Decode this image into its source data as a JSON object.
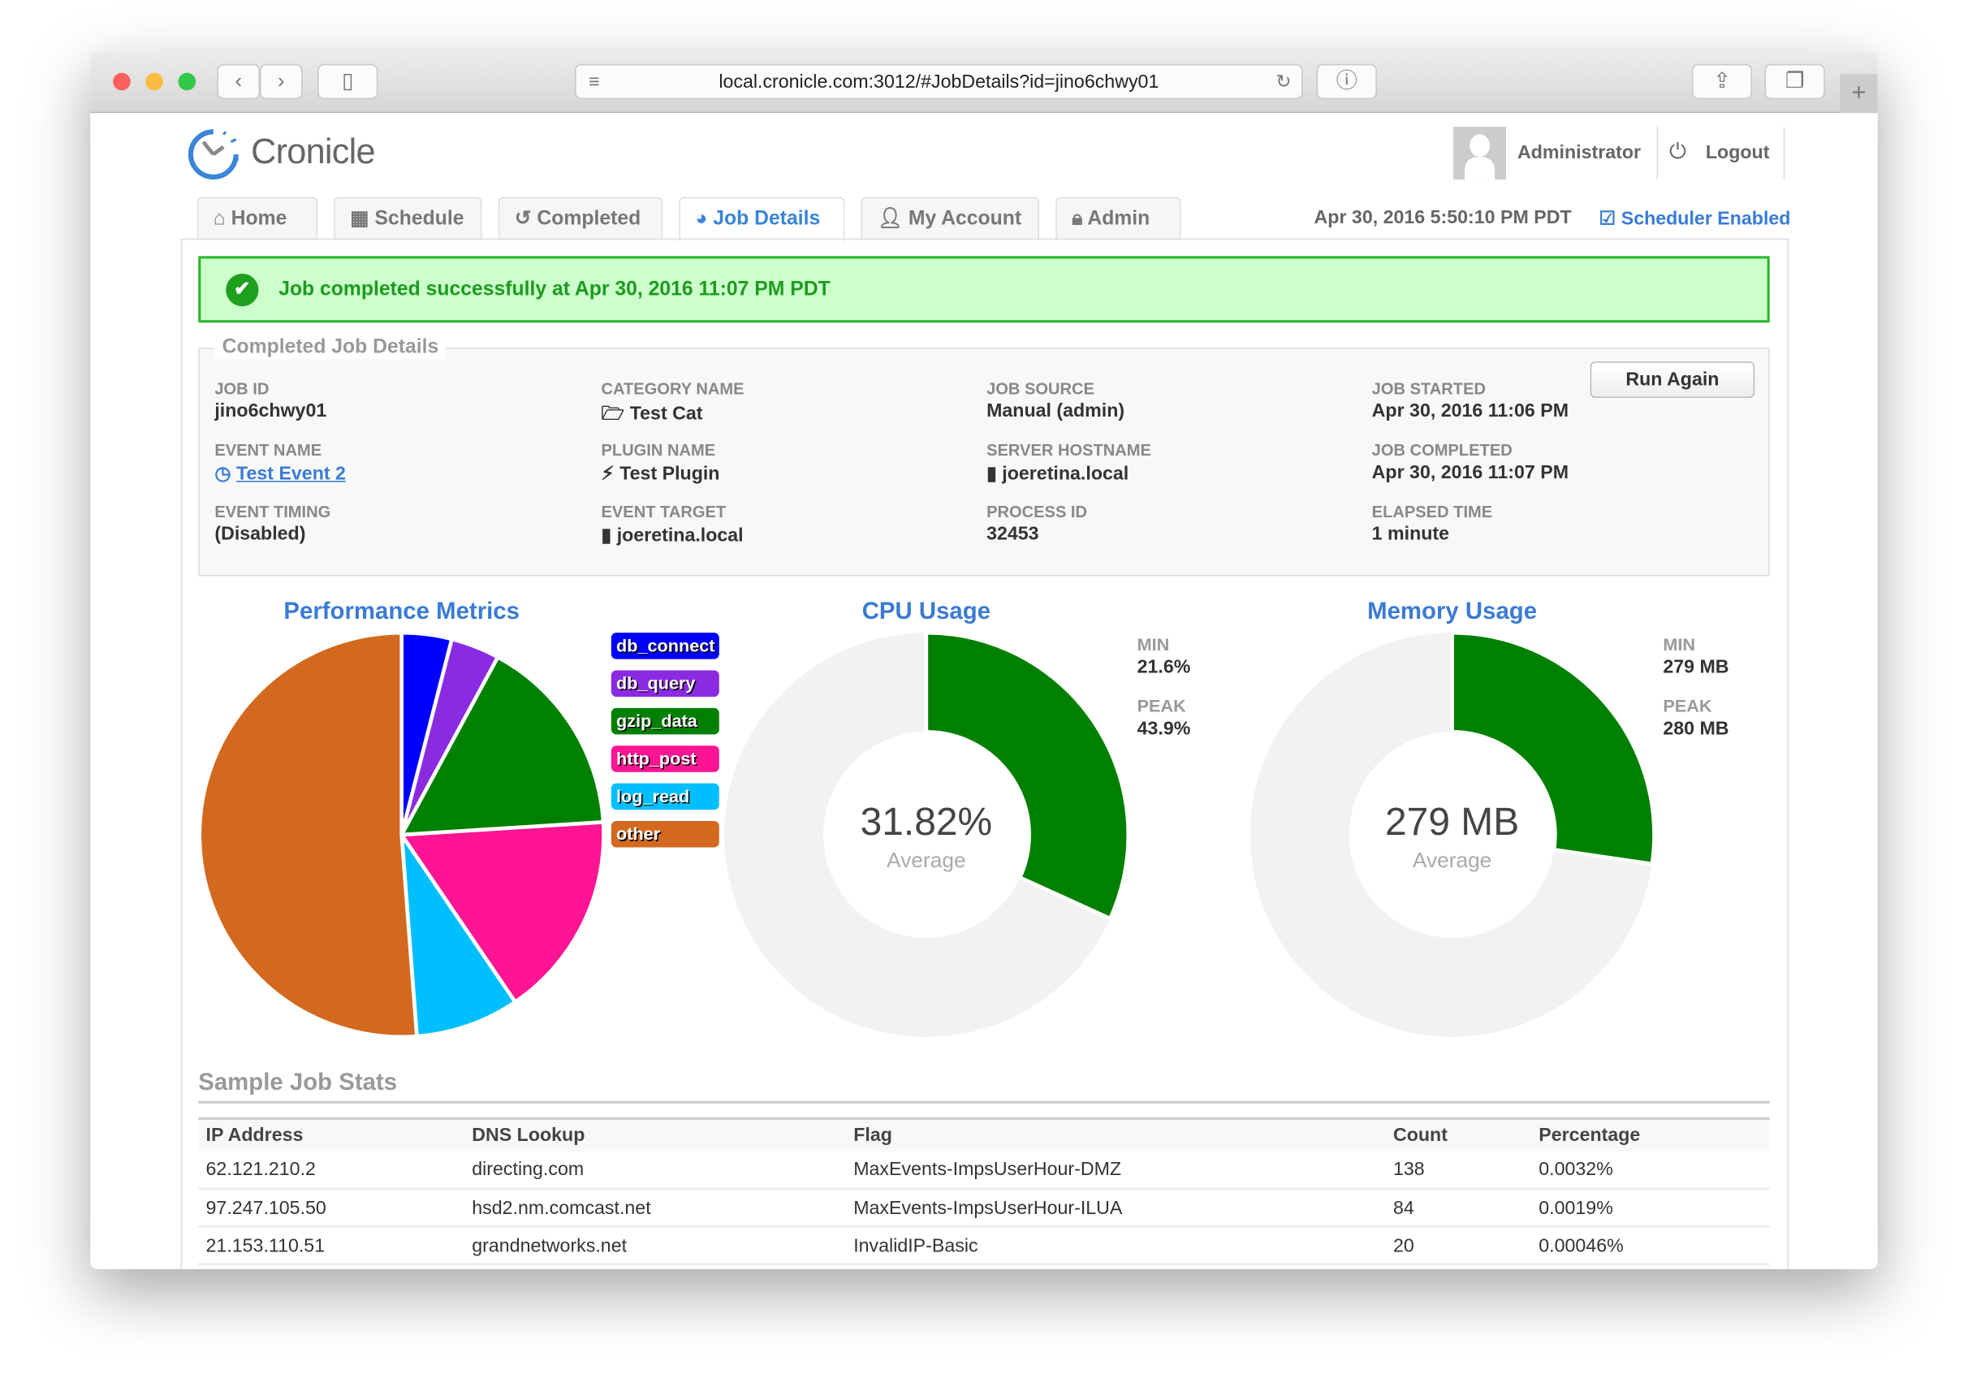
{
  "browser": {
    "url": "local.cronicle.com:3012/#JobDetails?id=jino6chwy01"
  },
  "header": {
    "logo": "Cronicle",
    "user": "Administrator",
    "logout": "Logout",
    "datetime": "Apr 30, 2016 5:50:10 PM PDT",
    "scheduler": "Scheduler Enabled"
  },
  "tabs": [
    {
      "label": "Home",
      "icon": "home-icon"
    },
    {
      "label": "Schedule",
      "icon": "calendar-icon"
    },
    {
      "label": "Completed",
      "icon": "history-icon"
    },
    {
      "label": "Job Details",
      "icon": "pie-chart-icon",
      "active": true
    },
    {
      "label": "My Account",
      "icon": "user-icon"
    },
    {
      "label": "Admin",
      "icon": "lock-icon"
    }
  ],
  "banner": "Job completed successfully at Apr 30, 2016 11:07 PM PDT",
  "details": {
    "legend": "Completed Job Details",
    "run_again": "Run Again",
    "fields": [
      {
        "label": "JOB ID",
        "value": "jino6chwy01"
      },
      {
        "label": "CATEGORY NAME",
        "value": "Test Cat",
        "icon": "folder-icon"
      },
      {
        "label": "JOB SOURCE",
        "value": "Manual (admin)"
      },
      {
        "label": "JOB STARTED",
        "value": "Apr 30, 2016 11:06 PM"
      },
      {
        "label": "EVENT NAME",
        "value": "Test Event 2",
        "icon": "clock-icon",
        "link": true
      },
      {
        "label": "PLUGIN NAME",
        "value": "Test Plugin",
        "icon": "plug-icon"
      },
      {
        "label": "SERVER HOSTNAME",
        "value": "joeretina.local",
        "icon": "server-icon"
      },
      {
        "label": "JOB COMPLETED",
        "value": "Apr 30, 2016 11:07 PM"
      },
      {
        "label": "EVENT TIMING",
        "value": "(Disabled)"
      },
      {
        "label": "EVENT TARGET",
        "value": "joeretina.local",
        "icon": "server-icon"
      },
      {
        "label": "PROCESS ID",
        "value": "32453"
      },
      {
        "label": "ELAPSED TIME",
        "value": "1 minute"
      }
    ]
  },
  "chart_data": [
    {
      "type": "pie",
      "title": "Performance Metrics",
      "legend": "right",
      "categories": [
        "db_connect",
        "db_query",
        "gzip_data",
        "http_post",
        "log_read",
        "other"
      ],
      "values": [
        4.0,
        3.9,
        16.1,
        16.5,
        8.3,
        51.2
      ],
      "colors": [
        "#0000ff",
        "#8a2be2",
        "#008000",
        "#ff1493",
        "#00bfff",
        "#d2691e"
      ]
    },
    {
      "type": "pie",
      "title": "CPU Usage",
      "center_value": "31.82%",
      "center_label": "Average",
      "fill_fraction": 0.318,
      "color": "#008000",
      "track_color": "#f2f2f2",
      "stats": [
        {
          "label": "MIN",
          "value": "21.6%"
        },
        {
          "label": "PEAK",
          "value": "43.9%"
        }
      ]
    },
    {
      "type": "pie",
      "title": "Memory Usage",
      "center_value": "279 MB",
      "center_label": "Average",
      "fill_fraction": 0.273,
      "color": "#008000",
      "track_color": "#f2f2f2",
      "stats": [
        {
          "label": "MIN",
          "value": "279 MB"
        },
        {
          "label": "PEAK",
          "value": "280 MB"
        }
      ]
    }
  ],
  "stats_table": {
    "title": "Sample Job Stats",
    "columns": [
      "IP Address",
      "DNS Lookup",
      "Flag",
      "Count",
      "Percentage"
    ],
    "rows": [
      [
        "62.121.210.2",
        "directing.com",
        "MaxEvents-ImpsUserHour-DMZ",
        "138",
        "0.0032%"
      ],
      [
        "97.247.105.50",
        "hsd2.nm.comcast.net",
        "MaxEvents-ImpsUserHour-ILUA",
        "84",
        "0.0019%"
      ],
      [
        "21.153.110.51",
        "grandnetworks.net",
        "InvalidIP-Basic",
        "20",
        "0.00046%"
      ]
    ]
  }
}
